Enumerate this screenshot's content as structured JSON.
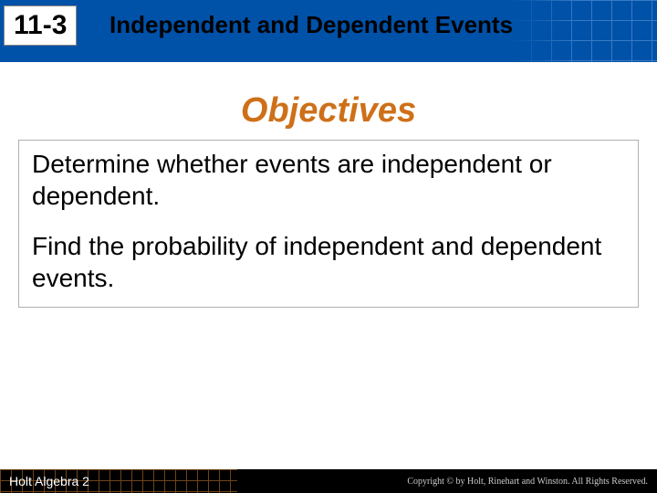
{
  "header": {
    "section_number": "11-3",
    "section_title": "Independent and Dependent Events",
    "band_color": "#0051a8",
    "grid_line_color": "#5999d8"
  },
  "content": {
    "heading": "Objectives",
    "heading_color": "#ce7019",
    "heading_fontsize_pt": 38,
    "box_border_color": "#b0b0b0",
    "objectives": [
      "Determine whether events are independent or dependent.",
      "Find the probability of independent and dependent events."
    ],
    "body_fontsize_pt": 28
  },
  "footer": {
    "left_text": "Holt Algebra 2",
    "right_text": "Copyright © by Holt, Rinehart and Winston. All Rights Reserved.",
    "background_color": "#000000",
    "grid_color": "#c97a2e"
  }
}
